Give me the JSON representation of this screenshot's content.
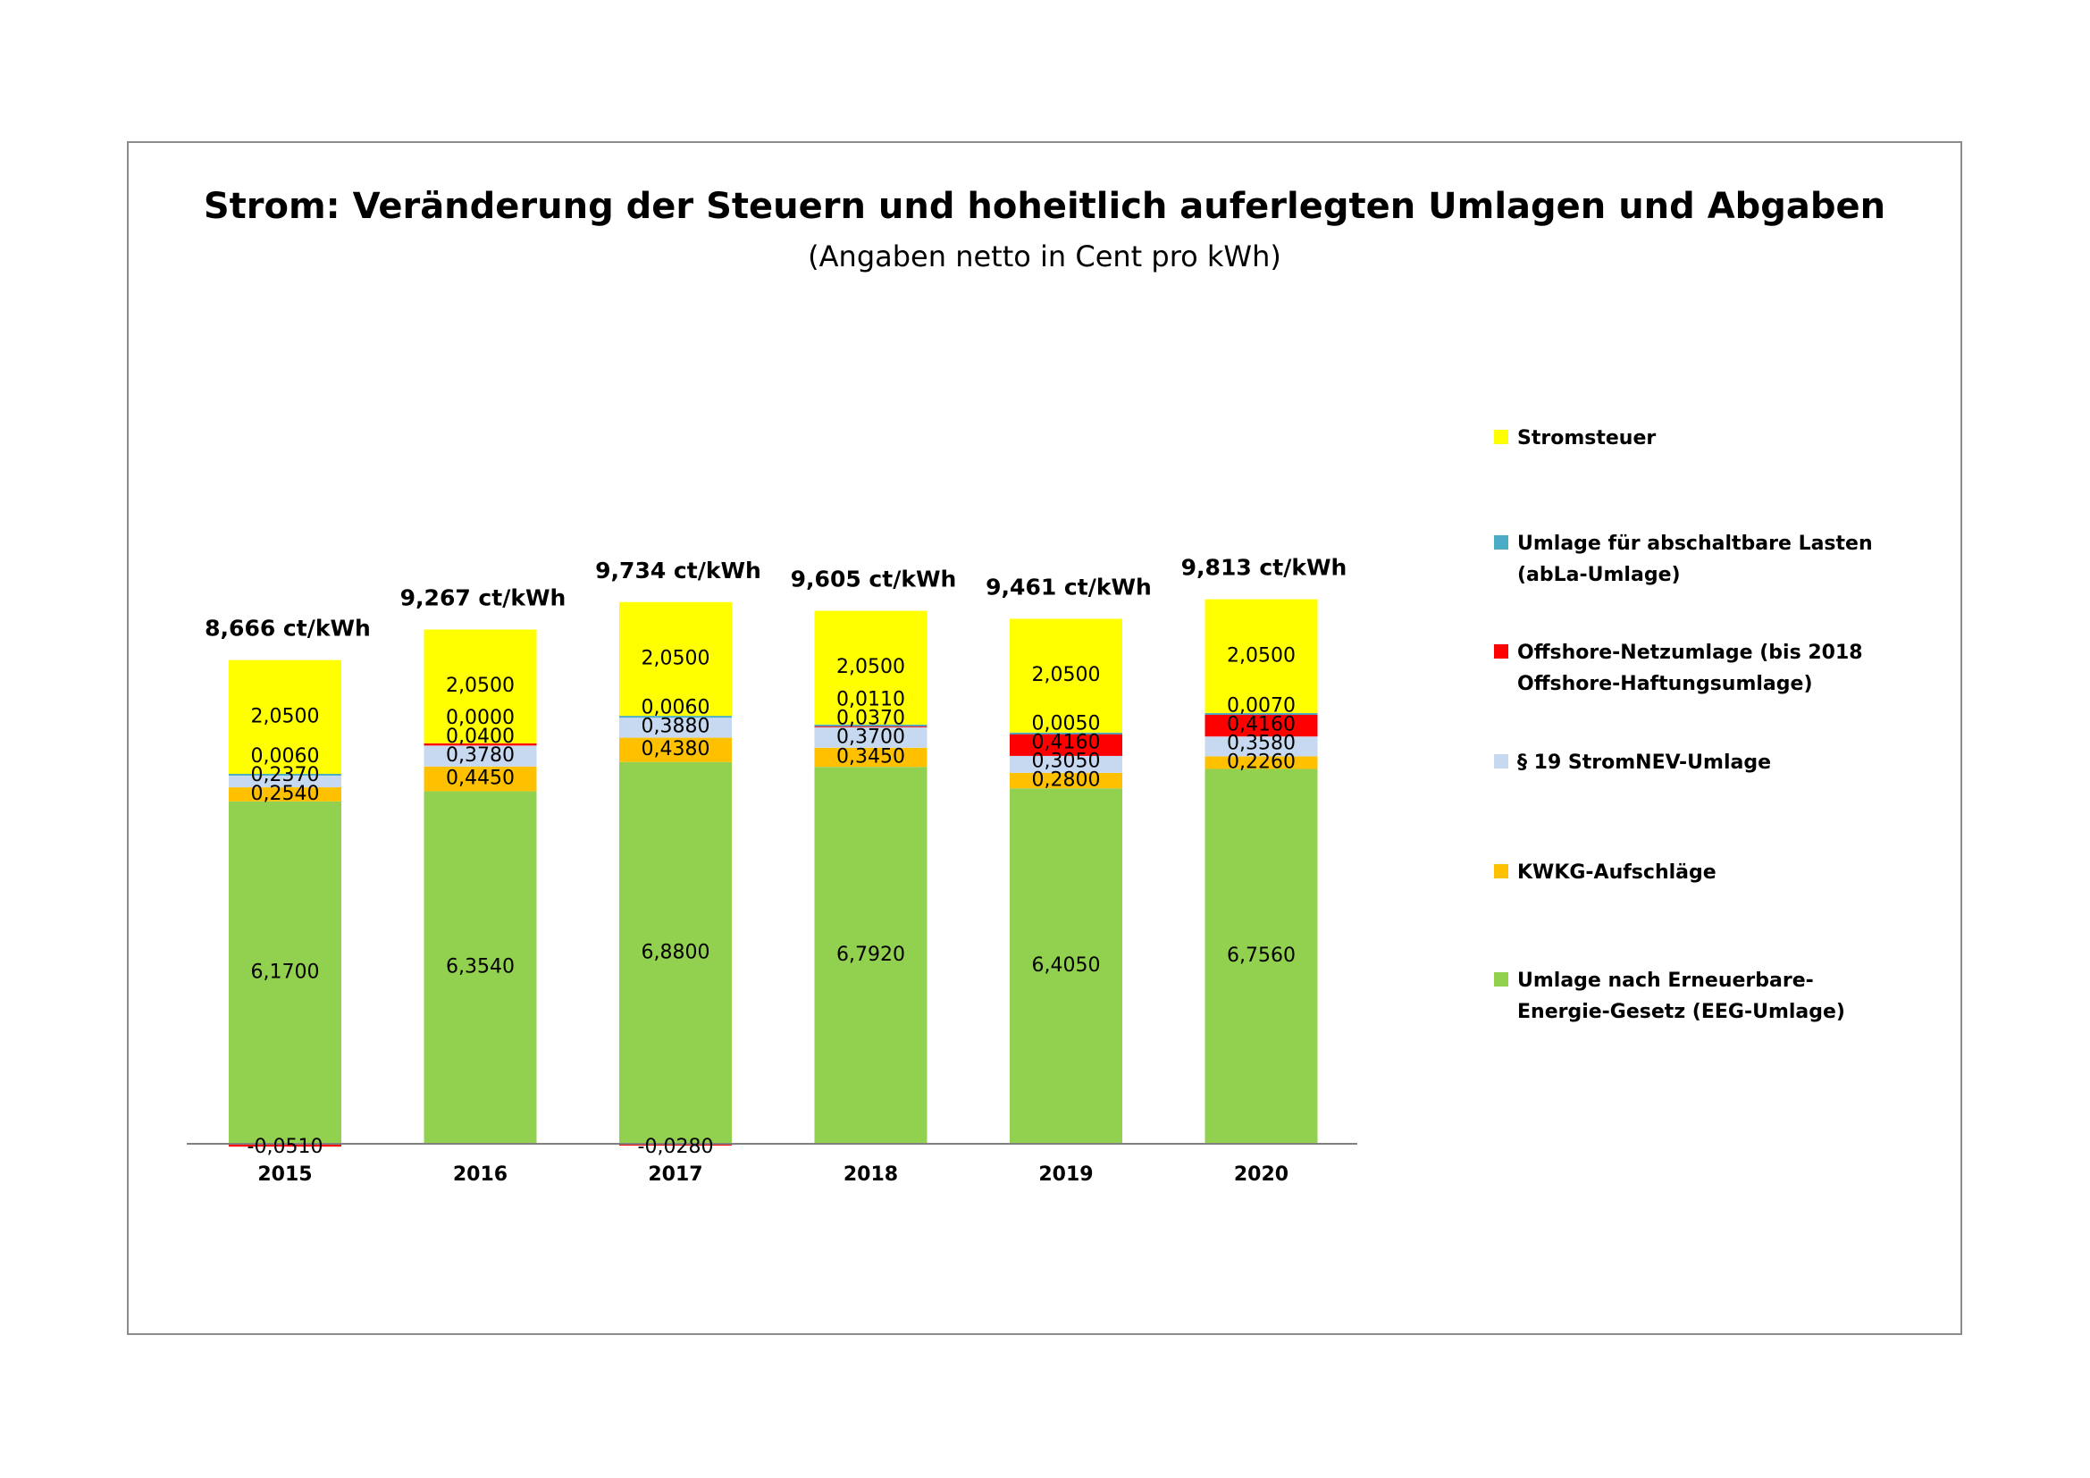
{
  "chart_data": {
    "type": "bar",
    "stacked": true,
    "title": "Strom: Veränderung der Steuern und hoheitlich auferlegten Umlagen und Abgaben",
    "subtitle": "(Angaben netto in Cent pro kWh)",
    "categories": [
      "2015",
      "2016",
      "2017",
      "2018",
      "2019",
      "2020"
    ],
    "totals": [
      "8,666 ct/kWh",
      "9,267 ct/kWh",
      "9,734 ct/kWh",
      "9,605 ct/kWh",
      "9,461 ct/kWh",
      "9,813 ct/kWh"
    ],
    "ylim": [
      -0.1,
      10
    ],
    "grid": false,
    "legend_position": "right",
    "series": [
      {
        "name": "Umlage nach Erneuerbare-Energie-Gesetz (EEG-Umlage)",
        "color": "#92d050",
        "values": [
          6.17,
          6.354,
          6.88,
          6.792,
          6.405,
          6.756
        ],
        "labels": [
          "6,1700",
          "6,3540",
          "6,8800",
          "6,7920",
          "6,4050",
          "6,7560"
        ]
      },
      {
        "name": "KWKG-Aufschläge",
        "color": "#ffc000",
        "values": [
          0.254,
          0.445,
          0.438,
          0.345,
          0.28,
          0.226
        ],
        "labels": [
          "0,2540",
          "0,4450",
          "0,4380",
          "0,3450",
          "0,2800",
          "0,2260"
        ]
      },
      {
        "name": "§ 19 StromNEV-Umlage",
        "color": "#c6d9f1",
        "values": [
          0.237,
          0.378,
          0.388,
          0.37,
          0.305,
          0.358
        ],
        "labels": [
          "0,2370",
          "0,3780",
          "0,3880",
          "0,3700",
          "0,3050",
          "0,3580"
        ]
      },
      {
        "name": "Offshore-Netzumlage (bis 2018 Offshore-Haftungsumlage)",
        "color": "#ff0000",
        "values": [
          -0.051,
          0.04,
          -0.028,
          0.037,
          0.416,
          0.416
        ],
        "labels": [
          "-0,0510",
          "0,0400",
          "-0,0280",
          "0,0370",
          "0,4160",
          "0,4160"
        ]
      },
      {
        "name": "Umlage für abschaltbare Lasten (abLa-Umlage)",
        "color": "#4bacc6",
        "values": [
          0.006,
          0.0,
          0.006,
          0.011,
          0.005,
          0.007
        ],
        "labels": [
          "0,0060",
          "0,0000",
          "0,0060",
          "0,0110",
          "0,0050",
          "0,0070"
        ]
      },
      {
        "name": "Stromsteuer",
        "color": "#ffff00",
        "values": [
          2.05,
          2.05,
          2.05,
          2.05,
          2.05,
          2.05
        ],
        "labels": [
          "2,0500",
          "2,0500",
          "2,0500",
          "2,0500",
          "2,0500",
          "2,0500"
        ]
      }
    ],
    "legend": [
      {
        "label": "Stromsteuer",
        "color": "#ffff00"
      },
      {
        "label": "Umlage für abschaltbare Lasten (abLa-Umlage)",
        "color": "#4bacc6"
      },
      {
        "label": "Offshore-Netzumlage (bis 2018 Offshore-Haftungsumlage)",
        "color": "#ff0000"
      },
      {
        "label": "§ 19 StromNEV-Umlage",
        "color": "#c6d9f1"
      },
      {
        "label": "KWKG-Aufschläge",
        "color": "#ffc000"
      },
      {
        "label": "Umlage nach Erneuerbare-Energie-Gesetz (EEG-Umlage)",
        "color": "#92d050"
      }
    ]
  }
}
